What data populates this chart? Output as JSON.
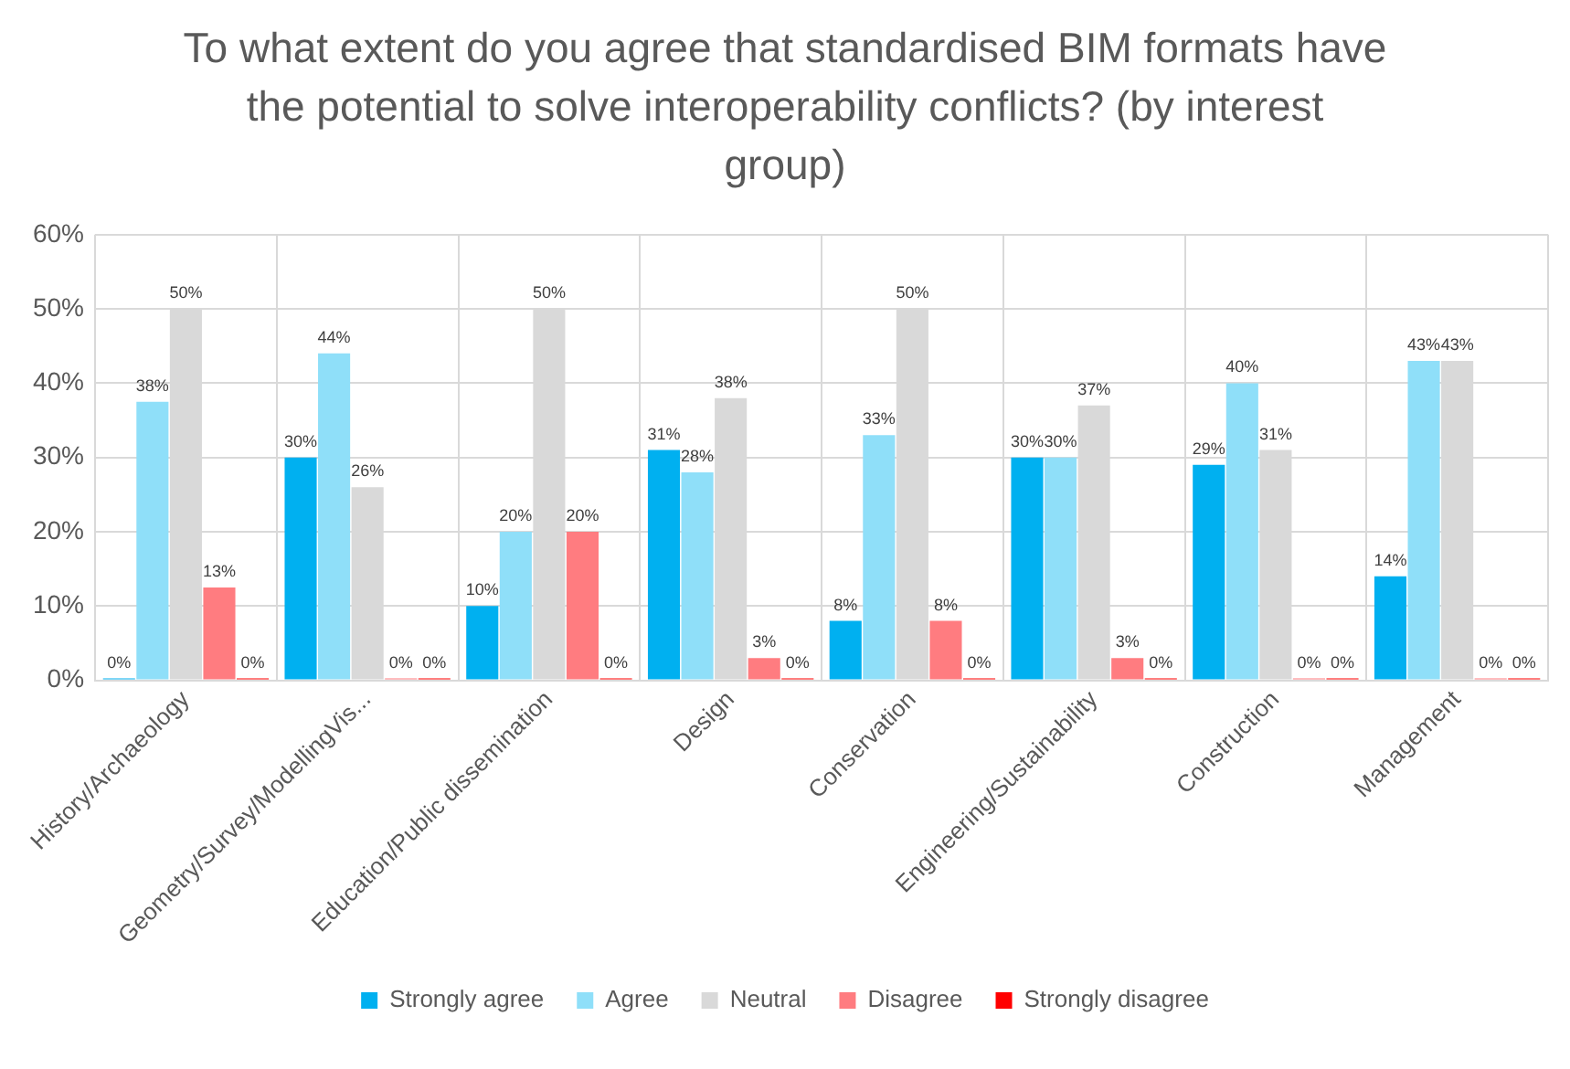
{
  "chart_data": {
    "type": "bar",
    "title": "To what extent do you agree that standardised BIM formats have the potential to solve interoperability conflicts? (by interest group)",
    "categories": [
      "History/Archaeology",
      "Geometry/Survey/ModellingVis...",
      "Education/Public dissemination",
      "Design",
      "Conservation",
      "Engineering/Sustainability",
      "Construction",
      "Management"
    ],
    "series": [
      {
        "name": "Strongly agree",
        "color": "#00b0f0",
        "values": [
          0,
          30,
          10,
          31,
          8,
          30,
          29,
          14
        ],
        "value_labels": [
          "0%",
          "30%",
          "10%",
          "31%",
          "8%",
          "30%",
          "29%",
          "14%"
        ]
      },
      {
        "name": "Agree",
        "color": "#8fdff9",
        "values": [
          37.5,
          44,
          20,
          28,
          33,
          30,
          40,
          43
        ],
        "value_labels": [
          "38%",
          "44%",
          "20%",
          "28%",
          "33%",
          "30%",
          "40%",
          "43%"
        ]
      },
      {
        "name": "Neutral",
        "color": "#d9d9d9",
        "values": [
          50,
          26,
          50,
          38,
          50,
          37,
          31,
          43
        ],
        "value_labels": [
          "50%",
          "26%",
          "50%",
          "38%",
          "50%",
          "37%",
          "31%",
          "43%"
        ]
      },
      {
        "name": "Disagree",
        "color": "#ff7c80",
        "values": [
          12.5,
          0,
          20,
          3,
          8,
          3,
          0,
          0
        ],
        "value_labels": [
          "13%",
          "0%",
          "20%",
          "3%",
          "8%",
          "3%",
          "0%",
          "0%"
        ]
      },
      {
        "name": "Strongly disagree",
        "color": "#ff0000",
        "values": [
          0,
          0,
          0,
          0,
          0,
          0,
          0,
          0
        ],
        "value_labels": [
          "0%",
          "0%",
          "0%",
          "0%",
          "0%",
          "0%",
          "0%",
          "0%"
        ]
      }
    ],
    "ylim": [
      0,
      60
    ],
    "yticks": [
      {
        "value": 0,
        "label": "0%"
      },
      {
        "value": 10,
        "label": "10%"
      },
      {
        "value": 20,
        "label": "20%"
      },
      {
        "value": 30,
        "label": "30%"
      },
      {
        "value": 40,
        "label": "40%"
      },
      {
        "value": 50,
        "label": "50%"
      },
      {
        "value": 60,
        "label": "60%"
      }
    ],
    "grid": true,
    "legend": "bottom"
  }
}
